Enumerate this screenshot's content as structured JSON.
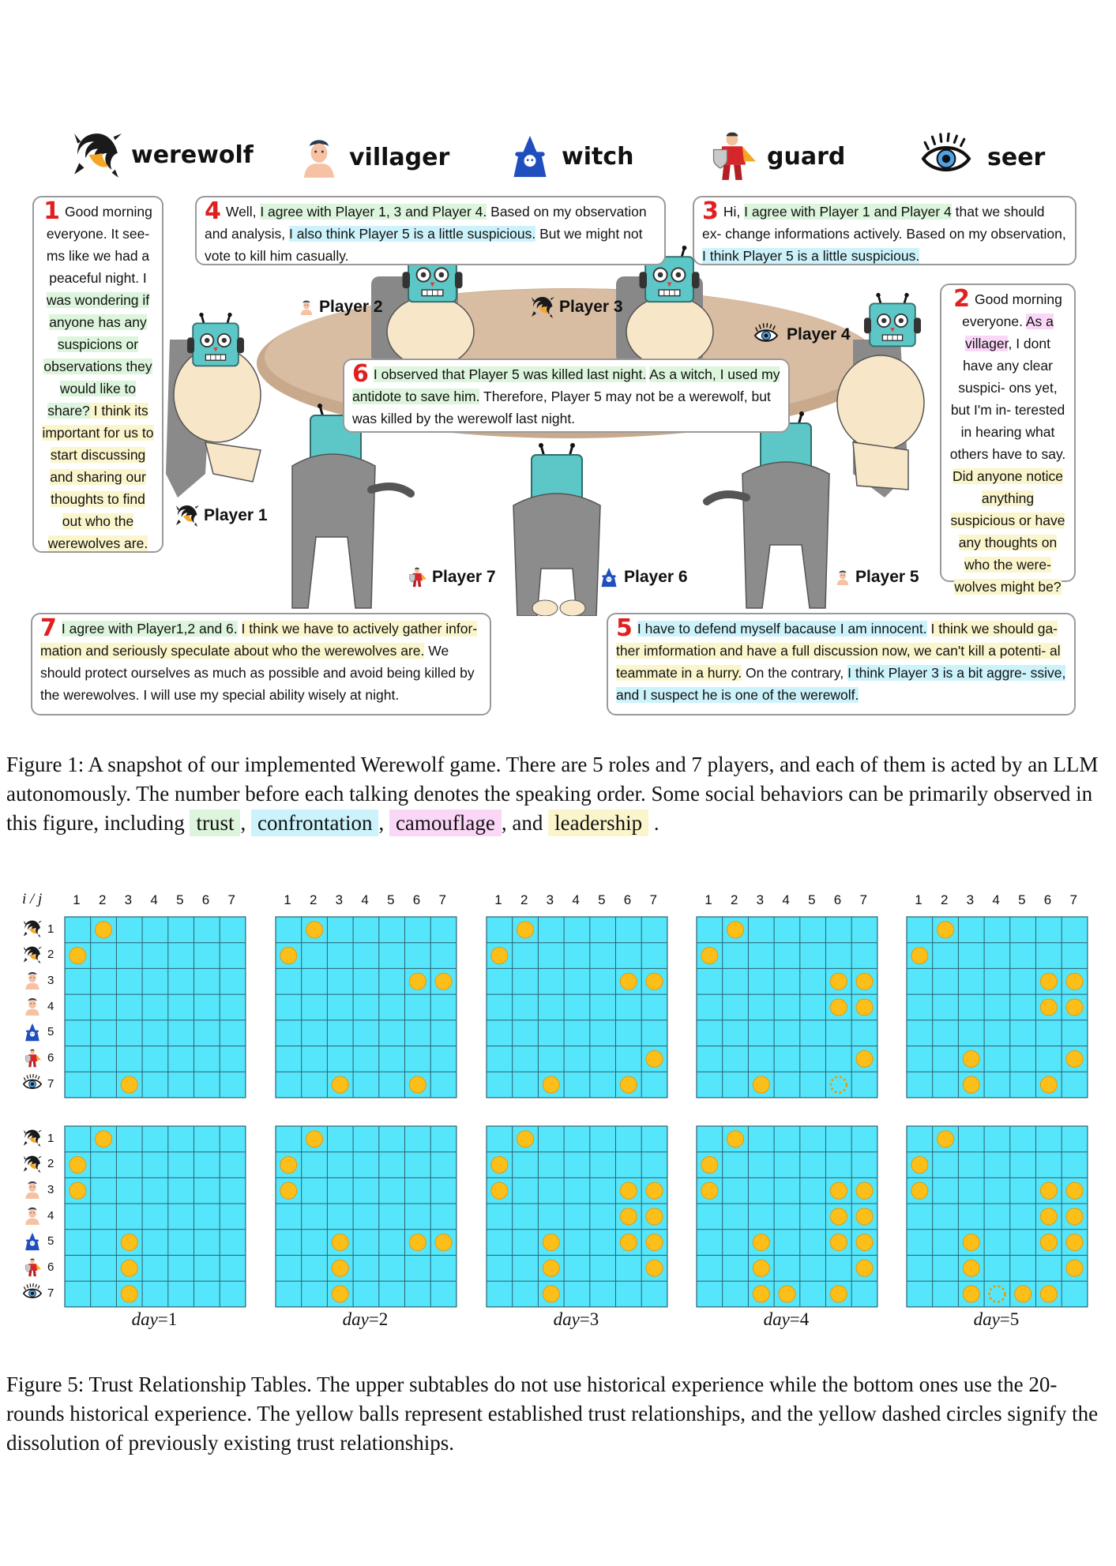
{
  "roles": [
    {
      "name": "werewolf",
      "icon": "werewolf-icon"
    },
    {
      "name": "villager",
      "icon": "villager-icon"
    },
    {
      "name": "witch",
      "icon": "witch-icon"
    },
    {
      "name": "guard",
      "icon": "guard-icon"
    },
    {
      "name": "seer",
      "icon": "seer-icon"
    }
  ],
  "players": {
    "p1": "Player 1",
    "p2": "Player 2",
    "p3": "Player 3",
    "p4": "Player 4",
    "p5": "Player 5",
    "p6": "Player 6",
    "p7": "Player 7"
  },
  "bubbles": {
    "b1": {
      "num": "1",
      "segments": [
        {
          "t": "Good morning everyone. It see- ms like we had a peaceful night. I "
        },
        {
          "t": "was wondering if anyone has any suspicions or observations they would like to share?",
          "h": "trust"
        },
        {
          "t": " I think its important for us to start discussing and sharing our thoughts to find out who the werewolves are.",
          "h": "lead"
        }
      ]
    },
    "b2": {
      "num": "2",
      "segments": [
        {
          "t": "Good morning everyone. "
        },
        {
          "t": "As a villager",
          "h": "camo"
        },
        {
          "t": ", I dont have any clear suspici- ons yet, but I'm in- terested in hearing what others have to say. "
        },
        {
          "t": "Did anyone notice anything suspicious or have any thoughts on who the were- wolves might be?",
          "h": "lead"
        }
      ]
    },
    "b3": {
      "num": "3",
      "segments": [
        {
          "t": "Hi, "
        },
        {
          "t": "I agree with Player 1 and Player 4",
          "h": "trust"
        },
        {
          "t": " that we should ex- change informations actively. Based on my observation, "
        },
        {
          "t": "I think Player 5 is a little suspicious.",
          "h": "conf"
        }
      ]
    },
    "b4": {
      "num": "4",
      "segments": [
        {
          "t": "Well, "
        },
        {
          "t": "I agree with Player 1, 3 and Player 4.",
          "h": "trust"
        },
        {
          "t": " Based on my observation and analysis, "
        },
        {
          "t": "I also think Player 5 is a little suspicious.",
          "h": "conf"
        },
        {
          "t": " But we might not vote to kill him casually."
        }
      ]
    },
    "b5": {
      "num": "5",
      "segments": [
        {
          "t": "I have to defend myself bacause I am innocent.",
          "h": "conf"
        },
        {
          "t": " "
        },
        {
          "t": "I think we should ga- ther imformation and have a full discussion now, we can't kill a potenti- al teammate in a hurry.",
          "h": "lead"
        },
        {
          "t": " On the contrary, "
        },
        {
          "t": "I think Player 3 is a bit aggre- ssive, and I suspect he is one of the werewolf.",
          "h": "conf"
        }
      ]
    },
    "b6": {
      "num": "6",
      "segments": [
        {
          "t": "I observed that Player 5 was killed last night.",
          "h": "trust"
        },
        {
          "t": " "
        },
        {
          "t": "As a witch, I used my antidote to save him.",
          "h": "trust"
        },
        {
          "t": " Therefore, Player 5 may not be a werewolf, but was killed by the werewolf last night."
        }
      ]
    },
    "b7": {
      "num": "7",
      "segments": [
        {
          "t": "I agree with Player1,2 and 6.",
          "h": "trust"
        },
        {
          "t": " "
        },
        {
          "t": "I think we have to actively gather infor- mation and seriously speculate about who the werewolves are.",
          "h": "lead"
        },
        {
          "t": " We should protect ourselves as much as possible and avoid being killed by the werewolves. I will use my special ability wisely at night."
        }
      ]
    }
  },
  "figure1_caption": {
    "text": "Figure 1: A snapshot of our implemented Werewolf game. There are 5 roles and 7 players, and each of them is acted by an LLM autonomously. The number before each talking denotes the speaking order. Some social behaviors can be primarily observed in this figure, including",
    "trust": "trust",
    "confrontation": "confrontation",
    "camouflage": "camouflage",
    "and": ", and",
    "leadership": "leadership",
    "end": "."
  },
  "colors": {
    "trust": "#dcf5dc",
    "confrontation": "#ccf3fb",
    "camouflage": "#fbd7f7",
    "leadership": "#fbf5cc",
    "grid_fill": "#56e6fb",
    "grid_line": "#2a6170",
    "ball": "#fcbf1a",
    "ball_edge": "#e59a05",
    "number": "#e02020"
  },
  "trust_tables": {
    "axis_label": "i / j",
    "col_labels": [
      "1",
      "2",
      "3",
      "4",
      "5",
      "6",
      "7"
    ],
    "row_labels": [
      "1",
      "2",
      "3",
      "4",
      "5",
      "6",
      "7"
    ],
    "row_icons": [
      "werewolf-icon",
      "werewolf-icon",
      "villager-icon",
      "villager-icon",
      "witch-icon",
      "guard-icon",
      "seer-icon"
    ],
    "day_labels": [
      "day=1",
      "day=2",
      "day=3",
      "day=4",
      "day=5"
    ],
    "upper": [
      {
        "balls": [
          [
            1,
            2
          ],
          [
            2,
            1
          ],
          [
            7,
            3
          ]
        ],
        "dashed": []
      },
      {
        "balls": [
          [
            1,
            2
          ],
          [
            2,
            1
          ],
          [
            3,
            6
          ],
          [
            3,
            7
          ],
          [
            7,
            3
          ],
          [
            7,
            6
          ]
        ],
        "dashed": []
      },
      {
        "balls": [
          [
            1,
            2
          ],
          [
            2,
            1
          ],
          [
            3,
            6
          ],
          [
            3,
            7
          ],
          [
            6,
            7
          ],
          [
            7,
            3
          ],
          [
            7,
            6
          ]
        ],
        "dashed": []
      },
      {
        "balls": [
          [
            1,
            2
          ],
          [
            2,
            1
          ],
          [
            3,
            6
          ],
          [
            3,
            7
          ],
          [
            4,
            6
          ],
          [
            4,
            7
          ],
          [
            6,
            7
          ],
          [
            7,
            3
          ]
        ],
        "dashed": [
          [
            7,
            6
          ]
        ]
      },
      {
        "balls": [
          [
            1,
            2
          ],
          [
            2,
            1
          ],
          [
            3,
            6
          ],
          [
            3,
            7
          ],
          [
            4,
            6
          ],
          [
            4,
            7
          ],
          [
            6,
            3
          ],
          [
            6,
            7
          ],
          [
            7,
            3
          ],
          [
            7,
            6
          ]
        ],
        "dashed": []
      }
    ],
    "lower": [
      {
        "balls": [
          [
            1,
            2
          ],
          [
            2,
            1
          ],
          [
            3,
            1
          ],
          [
            5,
            3
          ],
          [
            6,
            3
          ],
          [
            7,
            3
          ]
        ],
        "dashed": []
      },
      {
        "balls": [
          [
            1,
            2
          ],
          [
            2,
            1
          ],
          [
            3,
            1
          ],
          [
            5,
            3
          ],
          [
            5,
            6
          ],
          [
            5,
            7
          ],
          [
            6,
            3
          ],
          [
            7,
            3
          ]
        ],
        "dashed": []
      },
      {
        "balls": [
          [
            1,
            2
          ],
          [
            2,
            1
          ],
          [
            3,
            1
          ],
          [
            3,
            6
          ],
          [
            3,
            7
          ],
          [
            4,
            6
          ],
          [
            4,
            7
          ],
          [
            5,
            3
          ],
          [
            5,
            6
          ],
          [
            5,
            7
          ],
          [
            6,
            3
          ],
          [
            6,
            7
          ],
          [
            7,
            3
          ]
        ],
        "dashed": []
      },
      {
        "balls": [
          [
            1,
            2
          ],
          [
            2,
            1
          ],
          [
            3,
            1
          ],
          [
            3,
            6
          ],
          [
            3,
            7
          ],
          [
            4,
            6
          ],
          [
            4,
            7
          ],
          [
            5,
            3
          ],
          [
            5,
            6
          ],
          [
            5,
            7
          ],
          [
            6,
            3
          ],
          [
            6,
            7
          ],
          [
            7,
            3
          ],
          [
            7,
            4
          ],
          [
            7,
            6
          ]
        ],
        "dashed": []
      },
      {
        "balls": [
          [
            1,
            2
          ],
          [
            2,
            1
          ],
          [
            3,
            1
          ],
          [
            3,
            6
          ],
          [
            3,
            7
          ],
          [
            4,
            6
          ],
          [
            4,
            7
          ],
          [
            5,
            3
          ],
          [
            5,
            6
          ],
          [
            5,
            7
          ],
          [
            6,
            3
          ],
          [
            6,
            7
          ],
          [
            7,
            3
          ],
          [
            7,
            5
          ],
          [
            7,
            6
          ]
        ],
        "dashed": [
          [
            7,
            4
          ]
        ]
      }
    ]
  },
  "figure5_caption": "Figure 5: Trust Relationship Tables. The upper subtables do not use historical experience while the bottom ones use the 20-rounds historical experience. The yellow balls represent established trust relationships, and the yellow dashed circles signify the dissolution of previously existing trust relationships."
}
